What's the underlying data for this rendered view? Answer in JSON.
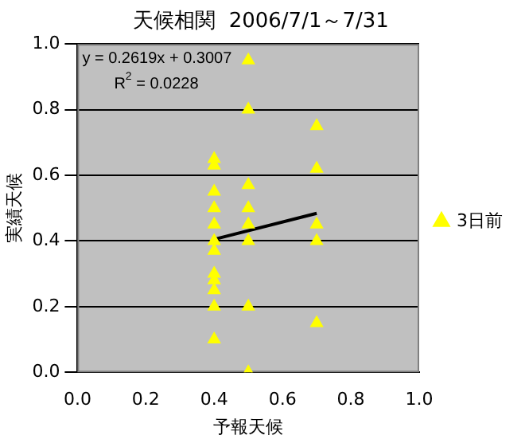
{
  "chart_data": {
    "type": "scatter",
    "title": "天候相関  2006/7/1～7/31",
    "xlabel": "予報天候",
    "ylabel": "実績天候",
    "xlim": [
      0,
      1
    ],
    "ylim": [
      0,
      1
    ],
    "xticks": [
      {
        "value": 0,
        "label": "0.0"
      },
      {
        "value": 0.2,
        "label": "0.2"
      },
      {
        "value": 0.4,
        "label": "0.4"
      },
      {
        "value": 0.6,
        "label": "0.6"
      },
      {
        "value": 0.8,
        "label": "0.8"
      },
      {
        "value": 1,
        "label": "1.0"
      }
    ],
    "yticks": [
      {
        "value": 0,
        "label": "0.0"
      },
      {
        "value": 0.2,
        "label": "0.2"
      },
      {
        "value": 0.4,
        "label": "0.4"
      },
      {
        "value": 0.6,
        "label": "0.6"
      },
      {
        "value": 0.8,
        "label": "0.8"
      },
      {
        "value": 1,
        "label": "1.0"
      }
    ],
    "grid": "y",
    "legend": "right",
    "marker": "triangle",
    "annotations": [
      "y = 0.2619x + 0.3007",
      "R$^{2}$ = 0.0228"
    ],
    "series": [
      {
        "name": "3日前",
        "color": "#ffff00",
        "x": [
          0.4,
          0.4,
          0.4,
          0.4,
          0.4,
          0.4,
          0.4,
          0.4,
          0.4,
          0.4,
          0.4,
          0.4,
          0.5,
          0.5,
          0.5,
          0.5,
          0.5,
          0.5,
          0.5,
          0.5,
          0.7,
          0.7,
          0.7,
          0.7,
          0.7
        ],
        "values": [
          0.65,
          0.63,
          0.55,
          0.5,
          0.45,
          0.4,
          0.37,
          0.3,
          0.28,
          0.25,
          0.2,
          0.1,
          0.95,
          0.8,
          0.57,
          0.5,
          0.45,
          0.4,
          0.2,
          0,
          0.75,
          0.62,
          0.45,
          0.4,
          0.15
        ]
      },
      {
        "type": "line",
        "color": "#000000",
        "x": [
          0.4,
          0.7
        ],
        "values": [
          0.405,
          0.484
        ],
        "marker": "none"
      }
    ]
  }
}
